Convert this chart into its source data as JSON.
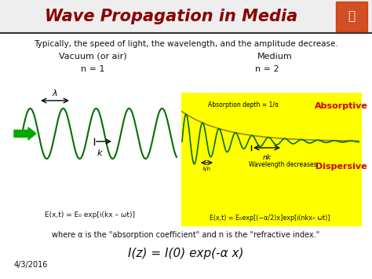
{
  "title": "Wave Propagation in Media",
  "title_color": "#8B0000",
  "bg_color": "#FFFFFF",
  "header_bg": "#F0F0F0",
  "subtitle": "Typically, the speed of light, the wavelength, and the amplitude decrease.",
  "vacuum_label": "Vacuum (or air)",
  "medium_label": "Medium",
  "n1_label": "n = 1",
  "n2_label": "n = 2",
  "vacuum_eq": "E(x,t) = E₀ exp[i(kx – ωt)]",
  "medium_eq": "E(x,t) = E₀exp[(−α/2)x]exp[i(nkx– ωt)]",
  "absorptive_label": "Absorptive",
  "dispersive_label": "Dispersive",
  "absorption_depth_label": "Absorption depth = 1/α",
  "wavelength_decreases_label": "Wavelength decreases",
  "lambda_label": "λ",
  "k_label": "k",
  "nk_label": "nk",
  "lambda_n_label": "λ/n",
  "where_text": "where α is the \"absorption coefficient\" and n is the \"refractive index.\"",
  "bottom_eq": "I(z) = I(0) exp(-α x)",
  "date_text": "4/3/2016",
  "wave_color": "#007000",
  "arrow_color": "#00AA00",
  "yellow_box_color": "#FFFF00",
  "red_label_color": "#CC0000",
  "envelope_color": "#A08020",
  "title_bar_color": "#EEEEEE",
  "sep_line_color": "#333333"
}
